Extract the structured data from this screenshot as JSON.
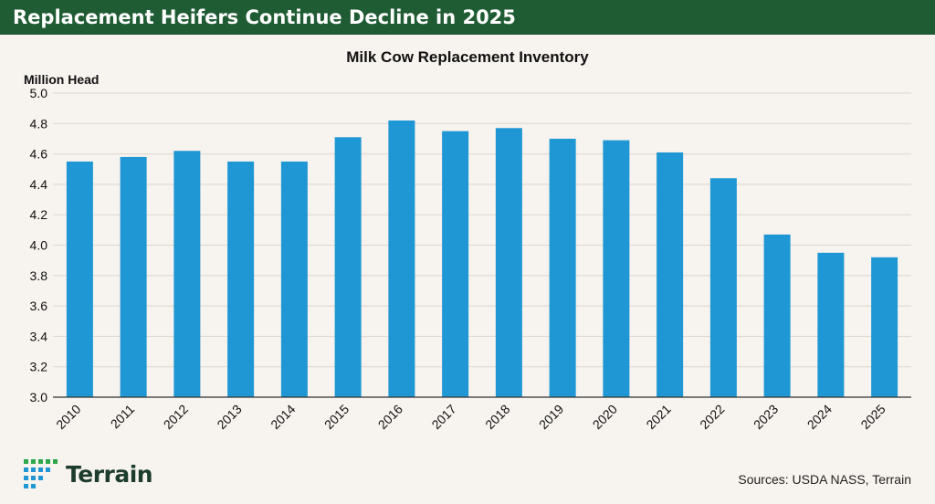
{
  "header": {
    "title": "Replacement Heifers Continue Decline in 2025"
  },
  "chart_data": {
    "type": "bar",
    "title": "Milk Cow Replacement Inventory",
    "ylabel": "Million Head",
    "xlabel": "",
    "categories": [
      "2010",
      "2011",
      "2012",
      "2013",
      "2014",
      "2015",
      "2016",
      "2017",
      "2018",
      "2019",
      "2020",
      "2021",
      "2022",
      "2023",
      "2024",
      "2025"
    ],
    "values": [
      4.55,
      4.58,
      4.62,
      4.55,
      4.55,
      4.71,
      4.82,
      4.75,
      4.77,
      4.7,
      4.69,
      4.61,
      4.44,
      4.07,
      3.95,
      3.92
    ],
    "ylim": [
      3.0,
      5.0
    ],
    "yticks": [
      "3.0",
      "3.2",
      "3.4",
      "3.6",
      "3.8",
      "4.0",
      "4.2",
      "4.4",
      "4.6",
      "4.8",
      "5.0"
    ],
    "grid": true,
    "colors": {
      "bar": "#1f97d4",
      "grid": "#dcd6cf",
      "axis": "#333333"
    }
  },
  "footer": {
    "logo_text": "Terrain",
    "logo_icon": "terrain-dot-grid-icon",
    "sources": "Sources: USDA NASS, Terrain"
  }
}
